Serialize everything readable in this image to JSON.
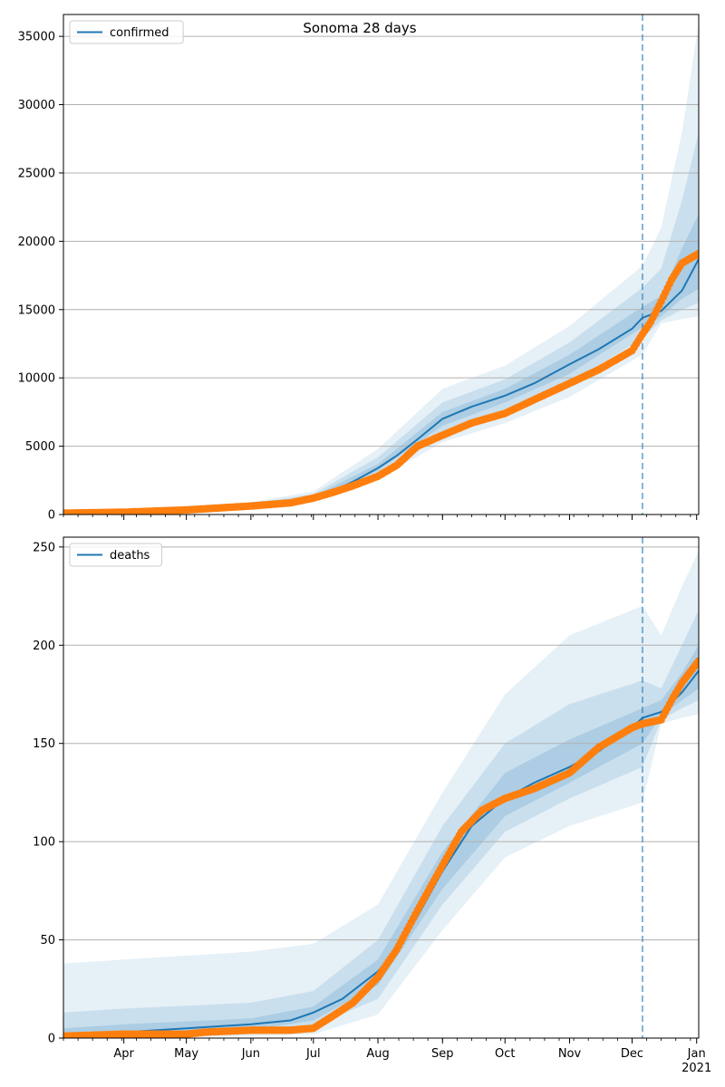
{
  "title": "Sonoma 28 days",
  "colors": {
    "model": "#1f77b4",
    "observed": "#ff7f0e",
    "band": "#1f77b4",
    "grid": "#b0b0b0"
  },
  "x_ticks": [
    {
      "date": "2020-04-01",
      "label": "Apr"
    },
    {
      "date": "2020-05-01",
      "label": "May"
    },
    {
      "date": "2020-06-01",
      "label": "Jun"
    },
    {
      "date": "2020-07-01",
      "label": "Jul"
    },
    {
      "date": "2020-08-01",
      "label": "Aug"
    },
    {
      "date": "2020-09-01",
      "label": "Sep"
    },
    {
      "date": "2020-10-01",
      "label": "Oct"
    },
    {
      "date": "2020-11-01",
      "label": "Nov"
    },
    {
      "date": "2020-12-01",
      "label": "Dec"
    },
    {
      "date": "2021-01-01",
      "label": "Jan"
    }
  ],
  "x_year_label": "2021",
  "chart_data": [
    {
      "type": "line",
      "legend": "confirmed",
      "legend_position": "top-left",
      "grid": "y",
      "xlim": [
        "2020-03-03",
        "2021-01-02"
      ],
      "ylim": [
        0,
        36600
      ],
      "y_ticks": [
        0,
        5000,
        10000,
        15000,
        20000,
        25000,
        30000,
        35000
      ],
      "forecast_start": "2020-12-06",
      "model": {
        "x": [
          "2020-03-03",
          "2020-04-01",
          "2020-05-01",
          "2020-06-01",
          "2020-06-20",
          "2020-07-01",
          "2020-07-10",
          "2020-07-20",
          "2020-08-01",
          "2020-08-10",
          "2020-08-20",
          "2020-09-01",
          "2020-09-15",
          "2020-10-01",
          "2020-10-15",
          "2020-11-01",
          "2020-11-15",
          "2020-12-01",
          "2020-12-06",
          "2020-12-15",
          "2020-12-25",
          "2021-01-02"
        ],
        "y": [
          100,
          150,
          350,
          650,
          850,
          1250,
          1700,
          2400,
          3400,
          4300,
          5500,
          7000,
          7900,
          8700,
          9600,
          11000,
          12100,
          13600,
          14400,
          14900,
          16400,
          18700
        ]
      },
      "observed": {
        "x": [
          "2020-03-03",
          "2020-04-01",
          "2020-05-01",
          "2020-06-01",
          "2020-06-20",
          "2020-07-01",
          "2020-07-10",
          "2020-07-20",
          "2020-08-01",
          "2020-08-10",
          "2020-08-20",
          "2020-09-01",
          "2020-09-15",
          "2020-10-01",
          "2020-10-15",
          "2020-11-01",
          "2020-11-15",
          "2020-12-01",
          "2020-12-06",
          "2020-12-10",
          "2020-12-15",
          "2020-12-20",
          "2020-12-25",
          "2021-01-02"
        ],
        "y": [
          100,
          170,
          330,
          620,
          850,
          1200,
          1600,
          2100,
          2800,
          3600,
          5000,
          5800,
          6700,
          7400,
          8400,
          9600,
          10600,
          12000,
          13200,
          14100,
          15600,
          17200,
          18400,
          19100
        ]
      },
      "bands": [
        {
          "label": "outer",
          "x": [
            "2020-03-03",
            "2020-06-01",
            "2020-07-01",
            "2020-08-01",
            "2020-09-01",
            "2020-10-01",
            "2020-11-01",
            "2020-12-06",
            "2020-12-15",
            "2020-12-25",
            "2021-01-02"
          ],
          "lower": [
            60,
            500,
            950,
            2600,
            5300,
            6700,
            8600,
            11700,
            14000,
            14300,
            14500
          ],
          "upper": [
            150,
            900,
            1700,
            4800,
            9200,
            10900,
            13800,
            18200,
            21000,
            28000,
            36000
          ]
        },
        {
          "label": "middle",
          "x": [
            "2020-03-03",
            "2020-06-01",
            "2020-07-01",
            "2020-08-01",
            "2020-09-01",
            "2020-10-01",
            "2020-11-01",
            "2020-12-06",
            "2020-12-15",
            "2020-12-25",
            "2021-01-02"
          ],
          "lower": [
            80,
            550,
            1050,
            2900,
            5900,
            7600,
            9600,
            12900,
            14200,
            15000,
            15500
          ],
          "upper": [
            130,
            800,
            1500,
            4200,
            8200,
            9900,
            12600,
            16600,
            18000,
            23000,
            28000
          ]
        },
        {
          "label": "inner",
          "x": [
            "2020-03-03",
            "2020-06-01",
            "2020-07-01",
            "2020-08-01",
            "2020-09-01",
            "2020-10-01",
            "2020-11-01",
            "2020-12-06",
            "2020-12-15",
            "2020-12-25",
            "2021-01-02"
          ],
          "lower": [
            90,
            600,
            1150,
            3200,
            6500,
            8200,
            10300,
            13700,
            14500,
            15800,
            16500
          ],
          "upper": [
            115,
            720,
            1350,
            3700,
            7500,
            9200,
            11700,
            15200,
            16000,
            19500,
            22000
          ]
        }
      ]
    },
    {
      "type": "line",
      "legend": "deaths",
      "legend_position": "top-left",
      "grid": "y",
      "xlim": [
        "2020-03-03",
        "2021-01-02"
      ],
      "ylim": [
        0,
        255
      ],
      "y_ticks": [
        0,
        50,
        100,
        150,
        200,
        250
      ],
      "forecast_start": "2020-12-06",
      "model": {
        "x": [
          "2020-03-03",
          "2020-04-01",
          "2020-05-01",
          "2020-06-01",
          "2020-06-20",
          "2020-07-01",
          "2020-07-15",
          "2020-08-01",
          "2020-08-10",
          "2020-08-20",
          "2020-09-01",
          "2020-09-15",
          "2020-10-01",
          "2020-10-15",
          "2020-11-01",
          "2020-11-15",
          "2020-12-01",
          "2020-12-06",
          "2020-12-15",
          "2020-12-25",
          "2021-01-02"
        ],
        "y": [
          1,
          3,
          5,
          7,
          9,
          13,
          20,
          34,
          45,
          62,
          85,
          108,
          122,
          130,
          138,
          146,
          158,
          163,
          166,
          176,
          187
        ]
      },
      "observed": {
        "x": [
          "2020-03-03",
          "2020-04-01",
          "2020-05-01",
          "2020-05-10",
          "2020-06-01",
          "2020-06-20",
          "2020-07-01",
          "2020-07-10",
          "2020-07-20",
          "2020-08-01",
          "2020-08-10",
          "2020-08-20",
          "2020-09-01",
          "2020-09-10",
          "2020-09-20",
          "2020-10-01",
          "2020-10-15",
          "2020-11-01",
          "2020-11-15",
          "2020-12-01",
          "2020-12-06",
          "2020-12-15",
          "2020-12-20",
          "2020-12-25",
          "2021-01-02"
        ],
        "y": [
          1,
          2,
          2,
          3,
          4,
          4,
          5,
          11,
          18,
          31,
          45,
          65,
          88,
          105,
          116,
          122,
          127,
          135,
          148,
          158,
          160,
          162,
          172,
          181,
          192
        ]
      },
      "bands": [
        {
          "label": "outer",
          "x": [
            "2020-03-03",
            "2020-04-01",
            "2020-06-01",
            "2020-07-01",
            "2020-08-01",
            "2020-09-01",
            "2020-10-01",
            "2020-11-01",
            "2020-12-06",
            "2020-12-15",
            "2020-12-25",
            "2021-01-02"
          ],
          "lower": [
            0,
            0,
            1,
            2,
            12,
            55,
            92,
            108,
            120,
            160,
            163,
            165
          ],
          "upper": [
            38,
            40,
            44,
            48,
            68,
            125,
            175,
            205,
            220,
            205,
            230,
            248
          ]
        },
        {
          "label": "middle",
          "x": [
            "2020-03-03",
            "2020-04-01",
            "2020-06-01",
            "2020-07-01",
            "2020-08-01",
            "2020-09-01",
            "2020-10-01",
            "2020-11-01",
            "2020-12-06",
            "2020-12-15",
            "2020-12-25",
            "2021-01-02"
          ],
          "lower": [
            0,
            1,
            3,
            6,
            20,
            68,
            105,
            122,
            138,
            162,
            168,
            172
          ],
          "upper": [
            13,
            15,
            18,
            24,
            50,
            108,
            150,
            170,
            182,
            178,
            200,
            218
          ]
        },
        {
          "label": "inner",
          "x": [
            "2020-03-03",
            "2020-04-01",
            "2020-06-01",
            "2020-07-01",
            "2020-08-01",
            "2020-09-01",
            "2020-10-01",
            "2020-11-01",
            "2020-12-06",
            "2020-12-15",
            "2020-12-25",
            "2021-01-02"
          ],
          "lower": [
            0,
            2,
            4,
            9,
            27,
            76,
            113,
            130,
            150,
            164,
            172,
            178
          ],
          "upper": [
            5,
            7,
            10,
            16,
            40,
            95,
            135,
            152,
            168,
            172,
            186,
            200
          ]
        }
      ]
    }
  ]
}
